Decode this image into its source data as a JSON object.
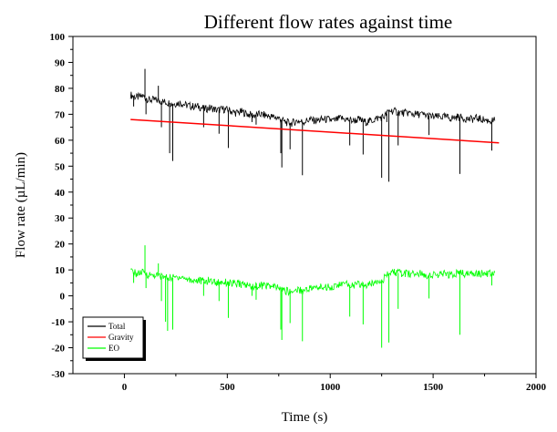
{
  "chart_data": {
    "type": "line",
    "title": "Different flow rates against time",
    "xlabel": "Time (s)",
    "ylabel": "Flow rate (µL/min)",
    "xlim": [
      -250,
      2000
    ],
    "ylim": [
      -30,
      100
    ],
    "xticks": [
      0,
      500,
      1000,
      1500,
      2000
    ],
    "yticks": [
      -30,
      -20,
      -10,
      0,
      10,
      20,
      30,
      40,
      50,
      60,
      70,
      80,
      90,
      100
    ],
    "grid": false,
    "legend_position": "bottom-left",
    "series": [
      {
        "name": "Total",
        "color": "#000000",
        "x": [
          30,
          60,
          90,
          120,
          150,
          180,
          210,
          240,
          270,
          300,
          330,
          360,
          390,
          420,
          450,
          480,
          510,
          540,
          570,
          600,
          630,
          660,
          690,
          720,
          750,
          780,
          810,
          840,
          870,
          900,
          930,
          960,
          990,
          1020,
          1050,
          1080,
          1110,
          1140,
          1170,
          1200,
          1230,
          1260,
          1290,
          1320,
          1350,
          1380,
          1410,
          1440,
          1470,
          1500,
          1530,
          1560,
          1590,
          1620,
          1650,
          1680,
          1710,
          1740,
          1770,
          1800
        ],
        "values": [
          77.5,
          76.5,
          77,
          75.5,
          75.5,
          75,
          74.5,
          74,
          74.5,
          73.5,
          73,
          73,
          72,
          72.5,
          71.5,
          72,
          71.5,
          70.5,
          71,
          70,
          69.5,
          70,
          69.5,
          69,
          68.5,
          67,
          66.5,
          67.5,
          67,
          68,
          67.5,
          68,
          68,
          67.5,
          68.5,
          68,
          67.5,
          68,
          67,
          67.5,
          68.5,
          69,
          71.5,
          71,
          70.5,
          70.5,
          70,
          70,
          69.5,
          69,
          69,
          69,
          68.5,
          69,
          68.5,
          68,
          68.5,
          68,
          67.5,
          67.5
        ],
        "spikes": [
          [
            45,
            73
          ],
          [
            100,
            87.5
          ],
          [
            105,
            70
          ],
          [
            165,
            81
          ],
          [
            180,
            65
          ],
          [
            220,
            55
          ],
          [
            235,
            52
          ],
          [
            385,
            65
          ],
          [
            460,
            62.5
          ],
          [
            505,
            57
          ],
          [
            620,
            67
          ],
          [
            640,
            66
          ],
          [
            760,
            55
          ],
          [
            765,
            49.5
          ],
          [
            805,
            56.5
          ],
          [
            865,
            46.5
          ],
          [
            1095,
            58
          ],
          [
            1160,
            54.5
          ],
          [
            1250,
            45.5
          ],
          [
            1275,
            67
          ],
          [
            1285,
            44
          ],
          [
            1330,
            58
          ],
          [
            1480,
            62
          ],
          [
            1630,
            47
          ],
          [
            1785,
            56
          ]
        ]
      },
      {
        "name": "Gravity",
        "color": "#ff0000",
        "x": [
          30,
          1820
        ],
        "values": [
          68,
          59
        ]
      },
      {
        "name": "EO",
        "color": "#00ff00",
        "x": [
          30,
          60,
          90,
          120,
          150,
          180,
          210,
          240,
          270,
          300,
          330,
          360,
          390,
          420,
          450,
          480,
          510,
          540,
          570,
          600,
          630,
          660,
          690,
          720,
          750,
          780,
          810,
          840,
          870,
          900,
          930,
          960,
          990,
          1020,
          1050,
          1080,
          1110,
          1140,
          1170,
          1200,
          1230,
          1260,
          1290,
          1320,
          1350,
          1380,
          1410,
          1440,
          1470,
          1500,
          1530,
          1560,
          1590,
          1620,
          1650,
          1680,
          1710,
          1740,
          1770,
          1800
        ],
        "values": [
          9.5,
          8.5,
          9,
          8,
          8,
          7.5,
          7,
          7,
          7.5,
          6.5,
          6,
          6,
          5.5,
          6,
          5,
          5.5,
          5,
          4.5,
          4.5,
          4,
          3.5,
          4,
          4,
          3.5,
          3,
          2,
          1.5,
          2.5,
          2,
          3,
          3,
          3.5,
          3.5,
          3.5,
          4.5,
          4.5,
          4,
          4.5,
          4,
          4.5,
          6,
          6.5,
          9,
          9,
          8.5,
          8.5,
          8.5,
          8.5,
          8,
          8,
          8,
          8.5,
          8,
          9,
          8.5,
          8.5,
          9,
          8.5,
          8.5,
          9
        ],
        "spikes": [
          [
            45,
            5
          ],
          [
            100,
            19.5
          ],
          [
            105,
            3
          ],
          [
            165,
            12.5
          ],
          [
            180,
            -2
          ],
          [
            200,
            -10
          ],
          [
            210,
            -13.5
          ],
          [
            235,
            -13
          ],
          [
            385,
            0
          ],
          [
            460,
            -2
          ],
          [
            505,
            -8.5
          ],
          [
            620,
            0
          ],
          [
            640,
            -1.5
          ],
          [
            760,
            -13
          ],
          [
            765,
            -17
          ],
          [
            805,
            -10.5
          ],
          [
            865,
            -17.5
          ],
          [
            1095,
            -8
          ],
          [
            1160,
            -11
          ],
          [
            1250,
            -20
          ],
          [
            1285,
            -18
          ],
          [
            1330,
            -5
          ],
          [
            1480,
            -1
          ],
          [
            1630,
            -15
          ],
          [
            1785,
            4
          ]
        ]
      }
    ]
  }
}
